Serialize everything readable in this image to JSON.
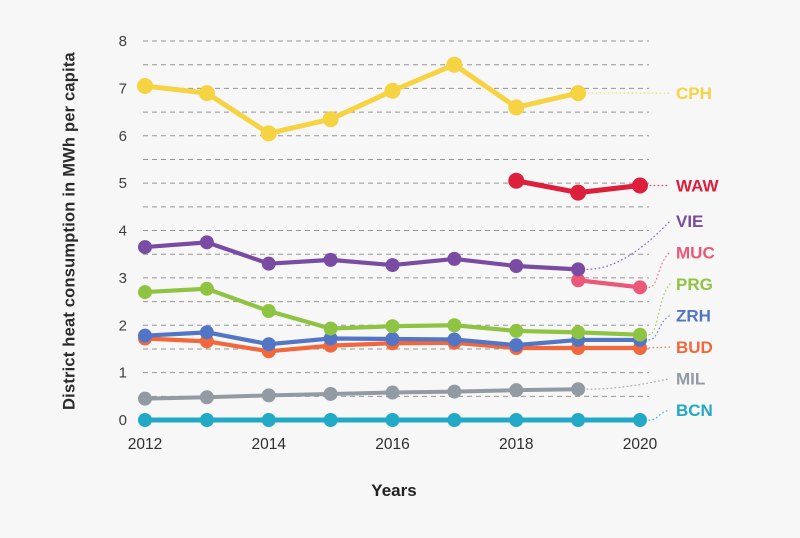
{
  "chart_data": {
    "type": "line",
    "title": "",
    "xlabel": "Years",
    "ylabel": "District heat consumption in MWh per capita",
    "x_ticks": [
      "2012",
      "2014",
      "2016",
      "2018",
      "2020"
    ],
    "y_ticks": [
      "0",
      "1",
      "2",
      "3",
      "4",
      "5",
      "6",
      "7",
      "8"
    ],
    "xlim": [
      2012,
      2020
    ],
    "ylim": [
      0,
      8
    ],
    "grid": "horizontal dashed lines every 0.5",
    "legend_position": "right-edge colored labels with dotted leader lines",
    "background_color": "#f7f7f8",
    "gridline_color": "#969696",
    "series": [
      {
        "name": "CPH",
        "color": "#f5d342",
        "start_year": 2012,
        "line_width": 5,
        "marker_radius": 8,
        "values": [
          7.05,
          6.9,
          6.05,
          6.35,
          6.95,
          7.5,
          6.6,
          6.9
        ]
      },
      {
        "name": "WAW",
        "color": "#dd1f3c",
        "start_year": 2018,
        "line_width": 5,
        "marker_radius": 8,
        "values": [
          5.05,
          4.8,
          4.95
        ]
      },
      {
        "name": "VIE",
        "color": "#7a4ba3",
        "start_year": 2012,
        "line_width": 4.2,
        "marker_radius": 7,
        "values": [
          3.65,
          3.75,
          3.3,
          3.38,
          3.27,
          3.4,
          3.25,
          3.18
        ]
      },
      {
        "name": "MUC",
        "color": "#ec5878",
        "start_year": 2019,
        "line_width": 4.2,
        "marker_radius": 7,
        "values": [
          2.95,
          2.8
        ]
      },
      {
        "name": "PRG",
        "color": "#8fc342",
        "start_year": 2012,
        "line_width": 4.2,
        "marker_radius": 7,
        "values": [
          2.7,
          2.77,
          2.3,
          1.93,
          1.98,
          2.0,
          1.88,
          1.85,
          1.8
        ]
      },
      {
        "name": "ZRH",
        "color": "#5276c5",
        "start_year": 2012,
        "line_width": 4.2,
        "marker_radius": 7,
        "values": [
          1.78,
          1.85,
          1.6,
          1.72,
          1.71,
          1.7,
          1.58,
          1.69,
          1.69
        ]
      },
      {
        "name": "BUD",
        "color": "#f2683c",
        "start_year": 2012,
        "line_width": 4.2,
        "marker_radius": 7,
        "values": [
          1.72,
          1.66,
          1.45,
          1.57,
          1.62,
          1.63,
          1.52,
          1.52,
          1.52
        ]
      },
      {
        "name": "MIL",
        "color": "#929ba3",
        "start_year": 2012,
        "line_width": 4,
        "marker_radius": 7,
        "values": [
          0.45,
          0.48,
          0.52,
          0.55,
          0.58,
          0.6,
          0.63,
          0.65
        ]
      },
      {
        "name": "BCN",
        "color": "#21a9c6",
        "start_year": 2012,
        "line_width": 5,
        "marker_radius": 7,
        "values": [
          0,
          0,
          0,
          0,
          0,
          0,
          0,
          0,
          0
        ]
      }
    ]
  }
}
